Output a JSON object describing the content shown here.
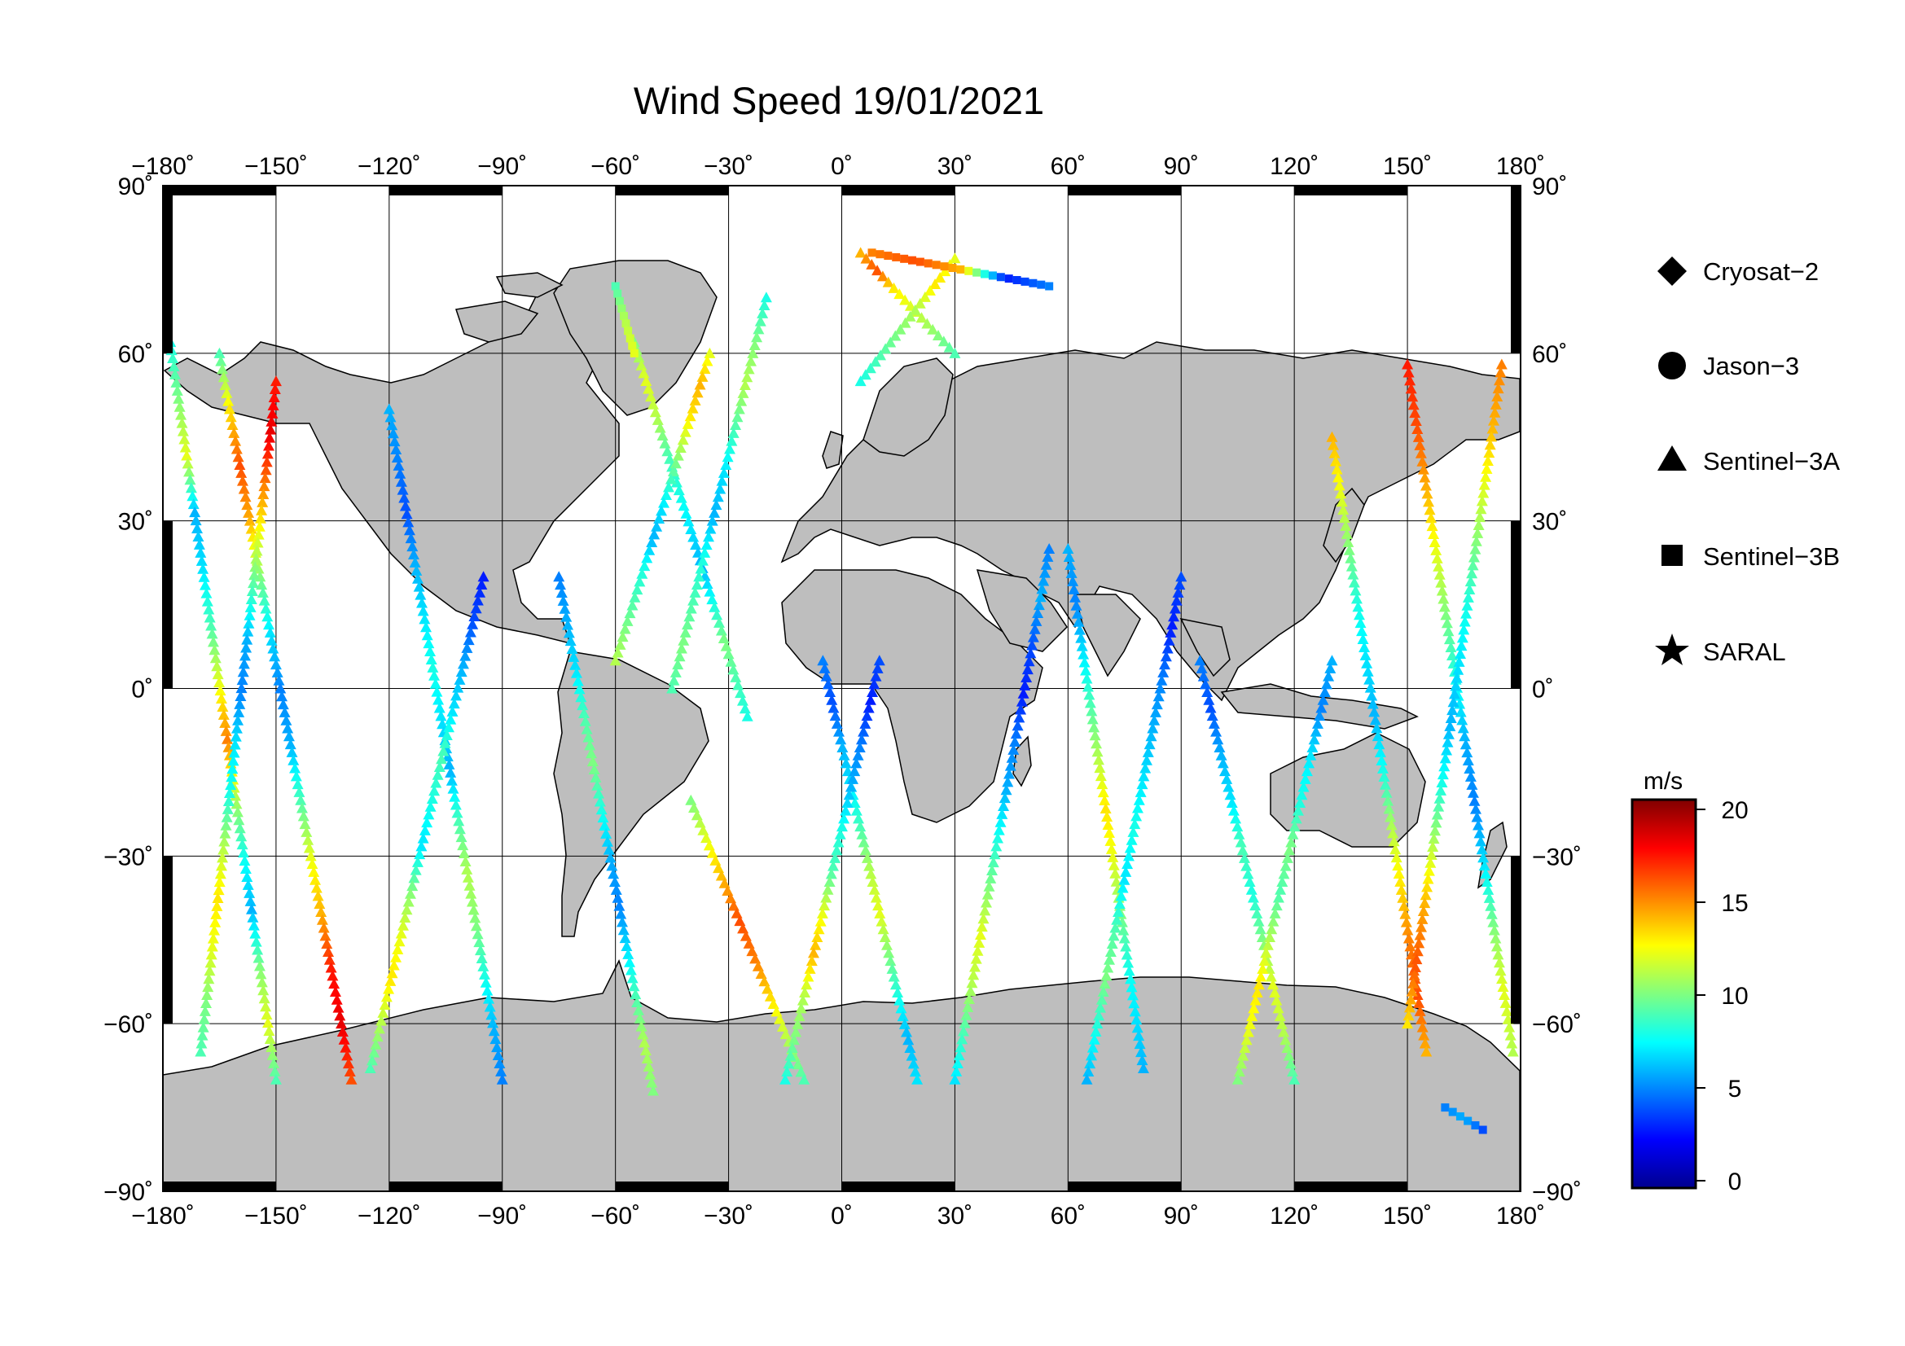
{
  "title": "Wind Speed 19/01/2021",
  "map": {
    "lon_range": [
      -180,
      180
    ],
    "lat_range": [
      -90,
      90
    ],
    "lon_ticks": [
      -180,
      -150,
      -120,
      -90,
      -60,
      -30,
      0,
      30,
      60,
      90,
      120,
      150,
      180
    ],
    "lat_ticks": [
      90,
      60,
      30,
      0,
      -30,
      -60,
      -90
    ],
    "lon_tick_labels": [
      "−180˚",
      "−150˚",
      "−120˚",
      "−90˚",
      "−60˚",
      "−30˚",
      "0˚",
      "30˚",
      "60˚",
      "90˚",
      "120˚",
      "150˚",
      "180˚"
    ],
    "lat_tick_labels": [
      "90˚",
      "60˚",
      "30˚",
      "0˚",
      "−30˚",
      "−60˚",
      "−90˚"
    ],
    "grid": true,
    "land_color": "#bebebe",
    "ocean_color": "#ffffff"
  },
  "legend": {
    "position": "right",
    "items": [
      {
        "label": "Cryosat−2",
        "symbol": "diamond"
      },
      {
        "label": "Jason−3",
        "symbol": "circle"
      },
      {
        "label": "Sentinel−3A",
        "symbol": "triangle"
      },
      {
        "label": "Sentinel−3B",
        "symbol": "square"
      },
      {
        "label": "SARAL",
        "symbol": "star"
      }
    ]
  },
  "colorbar": {
    "unit": "m/s",
    "min": 0,
    "max": 20,
    "ticks": [
      20,
      15,
      10,
      5,
      0
    ],
    "colormap": [
      "#00008f",
      "#0000ff",
      "#0080ff",
      "#00ffff",
      "#80ff80",
      "#ffff00",
      "#ff8000",
      "#ff0000",
      "#800000"
    ]
  },
  "chart_data": {
    "type": "scatter",
    "title": "Wind Speed 19/01/2021",
    "xlabel": "",
    "ylabel": "",
    "xlim": [
      -180,
      180
    ],
    "ylim": [
      -90,
      90
    ],
    "value_unit": "m/s",
    "value_range": [
      0,
      20
    ],
    "series": [
      {
        "name": "Sentinel−3A",
        "symbol": "triangle",
        "tracks": [
          {
            "lon_start": -178,
            "lat_start": 62,
            "lon_end": -150,
            "lat_end": -70,
            "values": [
              8,
              10,
              12,
              6,
              7,
              9,
              12,
              15,
              11,
              8,
              6,
              10,
              12,
              9
            ]
          },
          {
            "lon_start": -165,
            "lat_start": 60,
            "lon_end": -130,
            "lat_end": -70,
            "values": [
              9,
              13,
              16,
              14,
              10,
              7,
              5,
              6,
              9,
              12,
              14,
              17,
              18,
              16
            ]
          },
          {
            "lon_start": -150,
            "lat_start": 55,
            "lon_end": -170,
            "lat_end": -65,
            "values": [
              17,
              18,
              15,
              12,
              9,
              6,
              5,
              7,
              8,
              11,
              13,
              12,
              10,
              9
            ]
          },
          {
            "lon_start": -120,
            "lat_start": 50,
            "lon_end": -90,
            "lat_end": -70,
            "values": [
              6,
              5,
              4,
              6,
              7,
              8,
              7,
              6,
              9,
              11,
              10,
              8,
              6,
              5
            ]
          },
          {
            "lon_start": -95,
            "lat_start": 20,
            "lon_end": -125,
            "lat_end": -68,
            "values": [
              3,
              4,
              6,
              7,
              9,
              8,
              7,
              10,
              12,
              13,
              11,
              9
            ]
          },
          {
            "lon_start": -75,
            "lat_start": 20,
            "lon_end": -50,
            "lat_end": -72,
            "values": [
              5,
              6,
              7,
              9,
              10,
              8,
              6,
              5,
              7,
              9,
              11,
              10
            ]
          },
          {
            "lon_start": -55,
            "lat_start": 62,
            "lon_end": -25,
            "lat_end": -5,
            "values": [
              10,
              12,
              11,
              9,
              8,
              7,
              6,
              8,
              10,
              9,
              8
            ]
          },
          {
            "lon_start": -35,
            "lat_start": 60,
            "lon_end": -60,
            "lat_end": 5,
            "values": [
              12,
              14,
              13,
              11,
              9,
              7,
              6,
              8,
              9,
              10,
              11
            ]
          },
          {
            "lon_start": -40,
            "lat_start": -20,
            "lon_end": -10,
            "lat_end": -70,
            "values": [
              10,
              12,
              14,
              16,
              15,
              13,
              11,
              9
            ]
          },
          {
            "lon_start": -20,
            "lat_start": 70,
            "lon_end": -45,
            "lat_end": 0,
            "values": [
              8,
              10,
              11,
              9,
              7,
              6,
              8,
              9,
              10,
              9
            ]
          },
          {
            "lon_start": -5,
            "lat_start": 5,
            "lon_end": 20,
            "lat_end": -70,
            "values": [
              5,
              4,
              6,
              7,
              9,
              11,
              12,
              10,
              8,
              6,
              7
            ]
          },
          {
            "lon_start": 10,
            "lat_start": 5,
            "lon_end": -15,
            "lat_end": -70,
            "values": [
              4,
              3,
              5,
              6,
              8,
              9,
              12,
              14,
              11,
              10,
              8
            ]
          },
          {
            "lon_start": 5,
            "lat_start": 78,
            "lon_end": 30,
            "lat_end": 60,
            "values": [
              14,
              16,
              13,
              12,
              11,
              10,
              9
            ]
          },
          {
            "lon_start": 30,
            "lat_start": 77,
            "lon_end": 5,
            "lat_end": 55,
            "values": [
              12,
              13,
              11,
              10,
              9,
              8
            ]
          },
          {
            "lon_start": 55,
            "lat_start": 25,
            "lon_end": 30,
            "lat_end": -70,
            "values": [
              5,
              6,
              4,
              3,
              5,
              6,
              8,
              10,
              12,
              11,
              9,
              7
            ]
          },
          {
            "lon_start": 60,
            "lat_start": 25,
            "lon_end": 80,
            "lat_end": -68,
            "values": [
              6,
              5,
              7,
              9,
              11,
              13,
              12,
              10,
              8,
              7,
              6
            ]
          },
          {
            "lon_start": 90,
            "lat_start": 20,
            "lon_end": 65,
            "lat_end": -70,
            "values": [
              4,
              3,
              5,
              6,
              7,
              8,
              7,
              9,
              10,
              8,
              6
            ]
          },
          {
            "lon_start": 95,
            "lat_start": 5,
            "lon_end": 120,
            "lat_end": -70,
            "values": [
              5,
              4,
              6,
              7,
              9,
              8,
              10,
              12,
              11,
              9
            ]
          },
          {
            "lon_start": 130,
            "lat_start": 5,
            "lon_end": 105,
            "lat_end": -70,
            "values": [
              6,
              5,
              7,
              8,
              10,
              9,
              11,
              13,
              12,
              10
            ]
          },
          {
            "lon_start": 130,
            "lat_start": 45,
            "lon_end": 155,
            "lat_end": -65,
            "values": [
              14,
              12,
              10,
              8,
              7,
              6,
              8,
              11,
              13,
              15,
              16,
              14
            ]
          },
          {
            "lon_start": 150,
            "lat_start": 58,
            "lon_end": 178,
            "lat_end": -65,
            "values": [
              17,
              16,
              14,
              12,
              10,
              8,
              6,
              5,
              7,
              10,
              12,
              11
            ]
          },
          {
            "lon_start": 175,
            "lat_start": 58,
            "lon_end": 150,
            "lat_end": -60,
            "values": [
              15,
              14,
              12,
              10,
              8,
              7,
              6,
              8,
              11,
              14,
              16,
              13
            ]
          }
        ]
      },
      {
        "name": "Sentinel−3B",
        "symbol": "square",
        "tracks": [
          {
            "lon_start": -60,
            "lat_start": 72,
            "lon_end": -55,
            "lat_end": 60,
            "values": [
              9,
              11,
              12
            ]
          },
          {
            "lon_start": 8,
            "lat_start": 78,
            "lon_end": 55,
            "lat_end": 72,
            "values": [
              15,
              16,
              14,
              3,
              5
            ]
          },
          {
            "lon_start": 160,
            "lat_start": -75,
            "lon_end": 170,
            "lat_end": -79,
            "values": [
              5,
              6,
              4
            ]
          }
        ]
      }
    ]
  }
}
